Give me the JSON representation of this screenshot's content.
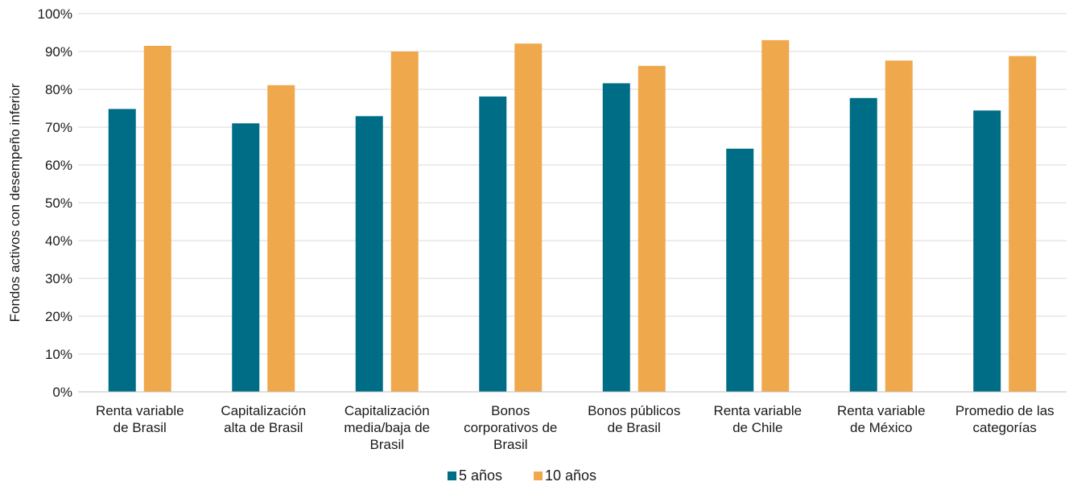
{
  "chart_data": {
    "type": "bar",
    "ylabel": "Fondos activos con desempeño inferior",
    "ylim": [
      0,
      100
    ],
    "yticks": [
      "0%",
      "10%",
      "20%",
      "30%",
      "40%",
      "50%",
      "60%",
      "70%",
      "80%",
      "90%",
      "100%"
    ],
    "grid": true,
    "legend_position": "bottom",
    "categories": [
      [
        "Renta variable",
        "de Brasil"
      ],
      [
        "Capitalización",
        "alta de Brasil"
      ],
      [
        "Capitalización",
        "media/baja de",
        "Brasil"
      ],
      [
        "Bonos",
        "corporativos de",
        "Brasil"
      ],
      [
        "Bonos públicos",
        "de Brasil"
      ],
      [
        "Renta variable",
        "de Chile"
      ],
      [
        "Renta variable",
        "de México"
      ],
      [
        "Promedio de las",
        "categorías"
      ]
    ],
    "series": [
      {
        "name": "5 años",
        "color": "#006d87",
        "values": [
          74.8,
          71.0,
          72.9,
          78.1,
          81.6,
          64.3,
          77.7,
          74.4
        ]
      },
      {
        "name": "10 años",
        "color": "#f0a84d",
        "values": [
          91.5,
          81.1,
          90.0,
          92.1,
          86.2,
          93.0,
          87.6,
          88.8
        ]
      }
    ]
  }
}
